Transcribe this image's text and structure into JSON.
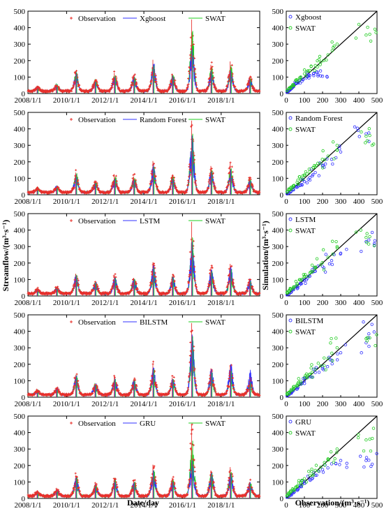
{
  "figure": {
    "ylabel_left": "Streamflow/(m³·s⁻¹)",
    "xlabel_left": "Date/day",
    "ylabel_right": "Simulation/(m³·s⁻¹)",
    "xlabel_right": "Observation/(m³·s⁻¹)"
  },
  "colors": {
    "observation": "#e8302b",
    "model": "#3030ff",
    "swat": "#22cc22",
    "identity_line": "#000000"
  },
  "chart_data": [
    {
      "type": "line",
      "panel": "timeseries",
      "legend": [
        "Observation",
        "Xgboost",
        "SWAT"
      ],
      "x_ticks": [
        "2008/1/1",
        "2010/1/1",
        "2012/1/1",
        "2014/1/1",
        "2016/1/1",
        "2018/1/1"
      ],
      "xlim": [
        "2008/1/1",
        "2019/12/31"
      ],
      "ylim": [
        0,
        500
      ],
      "y_ticks": [
        0,
        100,
        200,
        300,
        400,
        500
      ],
      "x": [
        "2008/7/1",
        "2009/7/1",
        "2010/7/1",
        "2011/7/1",
        "2012/7/1",
        "2013/7/1",
        "2014/7/1",
        "2015/7/1",
        "2016/7/1",
        "2017/7/1",
        "2018/7/1",
        "2019/7/1"
      ],
      "series": [
        {
          "name": "Observation",
          "peaks": [
            30,
            45,
            135,
            80,
            125,
            110,
            205,
            120,
            450,
            175,
            195,
            100
          ]
        },
        {
          "name": "Xgboost",
          "peaks": [
            25,
            40,
            120,
            70,
            100,
            95,
            180,
            100,
            270,
            130,
            140,
            80
          ]
        },
        {
          "name": "SWAT",
          "peaks": [
            28,
            42,
            125,
            72,
            110,
            100,
            170,
            110,
            380,
            150,
            160,
            90
          ]
        }
      ]
    },
    {
      "type": "scatter",
      "panel": "scatter",
      "legend": [
        "Xgboost",
        "SWAT"
      ],
      "xlim": [
        0,
        500
      ],
      "ylim": [
        0,
        500
      ],
      "ticks": [
        0,
        100,
        200,
        300,
        400,
        500
      ],
      "series": [
        {
          "name": "Xgboost",
          "x": [
            5,
            12,
            20,
            30,
            40,
            55,
            70,
            90,
            110,
            130,
            150,
            175,
            200
          ],
          "y": [
            8,
            15,
            22,
            35,
            45,
            60,
            75,
            85,
            95,
            110,
            120,
            115,
            105
          ]
        },
        {
          "name": "SWAT",
          "x": [
            5,
            15,
            25,
            40,
            60,
            80,
            100,
            130,
            160,
            190,
            230,
            280,
            440,
            460
          ],
          "y": [
            20,
            30,
            40,
            55,
            75,
            95,
            120,
            140,
            170,
            190,
            235,
            300,
            355,
            360
          ]
        }
      ]
    },
    {
      "type": "line",
      "panel": "timeseries",
      "legend": [
        "Observation",
        "Random Forest",
        "SWAT"
      ],
      "x_ticks": [
        "2008/1/1",
        "2010/1/1",
        "2012/1/1",
        "2014/1/1",
        "2016/1/1",
        "2018/1/1"
      ],
      "xlim": [
        "2008/1/1",
        "2019/12/31"
      ],
      "ylim": [
        0,
        500
      ],
      "y_ticks": [
        0,
        100,
        200,
        300,
        400,
        500
      ],
      "x": [
        "2008/7/1",
        "2009/7/1",
        "2010/7/1",
        "2011/7/1",
        "2012/7/1",
        "2013/7/1",
        "2014/7/1",
        "2015/7/1",
        "2016/7/1",
        "2017/7/1",
        "2018/7/1",
        "2019/7/1"
      ],
      "series": [
        {
          "name": "Observation",
          "peaks": [
            30,
            45,
            135,
            80,
            125,
            110,
            205,
            120,
            450,
            175,
            195,
            100
          ]
        },
        {
          "name": "Random Forest",
          "peaks": [
            25,
            38,
            110,
            65,
            95,
            90,
            170,
            95,
            360,
            140,
            150,
            85
          ]
        },
        {
          "name": "SWAT",
          "peaks": [
            28,
            42,
            125,
            72,
            110,
            100,
            170,
            110,
            370,
            150,
            160,
            90
          ]
        }
      ]
    },
    {
      "type": "scatter",
      "panel": "scatter",
      "legend": [
        "Random Forest",
        "SWAT"
      ],
      "xlim": [
        0,
        500
      ],
      "ylim": [
        0,
        500
      ],
      "ticks": [
        0,
        100,
        200,
        300,
        400,
        500
      ],
      "series": [
        {
          "name": "Random Forest",
          "x": [
            5,
            15,
            25,
            40,
            60,
            80,
            100,
            130,
            160,
            200,
            250,
            300,
            440,
            455
          ],
          "y": [
            6,
            12,
            20,
            30,
            45,
            60,
            80,
            105,
            135,
            175,
            215,
            260,
            370,
            375
          ]
        },
        {
          "name": "SWAT",
          "x": [
            5,
            15,
            25,
            40,
            60,
            80,
            100,
            130,
            160,
            190,
            230,
            280,
            440,
            460
          ],
          "y": [
            20,
            30,
            40,
            55,
            75,
            95,
            120,
            140,
            170,
            190,
            235,
            300,
            355,
            360
          ]
        }
      ]
    },
    {
      "type": "line",
      "panel": "timeseries",
      "legend": [
        "Observation",
        "LSTM",
        "SWAT"
      ],
      "x_ticks": [
        "2008/1/1",
        "2010/1/1",
        "2012/1/1",
        "2014/1/1",
        "2016/1/1",
        "2018/1/1"
      ],
      "xlim": [
        "2008/1/1",
        "2019/12/31"
      ],
      "ylim": [
        0,
        500
      ],
      "y_ticks": [
        0,
        100,
        200,
        300,
        400,
        500
      ],
      "x": [
        "2008/7/1",
        "2009/7/1",
        "2010/7/1",
        "2011/7/1",
        "2012/7/1",
        "2013/7/1",
        "2014/7/1",
        "2015/7/1",
        "2016/7/1",
        "2017/7/1",
        "2018/7/1",
        "2019/7/1"
      ],
      "series": [
        {
          "name": "Observation",
          "peaks": [
            30,
            45,
            135,
            80,
            125,
            110,
            205,
            120,
            450,
            175,
            195,
            100
          ]
        },
        {
          "name": "LSTM",
          "peaks": [
            26,
            42,
            125,
            75,
            110,
            100,
            185,
            110,
            330,
            160,
            175,
            90
          ]
        },
        {
          "name": "SWAT",
          "peaks": [
            28,
            42,
            125,
            72,
            110,
            100,
            170,
            110,
            350,
            150,
            160,
            90
          ]
        }
      ]
    },
    {
      "type": "scatter",
      "panel": "scatter",
      "legend": [
        "LSTM",
        "SWAT"
      ],
      "xlim": [
        0,
        500
      ],
      "ylim": [
        0,
        500
      ],
      "ticks": [
        0,
        100,
        200,
        300,
        400,
        500
      ],
      "series": [
        {
          "name": "LSTM",
          "x": [
            5,
            15,
            25,
            40,
            60,
            80,
            100,
            130,
            160,
            200,
            250,
            300,
            440,
            455
          ],
          "y": [
            7,
            14,
            24,
            38,
            55,
            75,
            95,
            120,
            150,
            180,
            215,
            260,
            330,
            340
          ]
        },
        {
          "name": "SWAT",
          "x": [
            5,
            15,
            25,
            40,
            60,
            80,
            100,
            130,
            160,
            190,
            230,
            280,
            440,
            460
          ],
          "y": [
            20,
            30,
            40,
            55,
            75,
            95,
            120,
            140,
            170,
            190,
            235,
            300,
            355,
            360
          ]
        }
      ]
    },
    {
      "type": "line",
      "panel": "timeseries",
      "legend": [
        "Observation",
        "BILSTM",
        "SWAT"
      ],
      "x_ticks": [
        "2008/1/1",
        "2010/1/1",
        "2012/1/1",
        "2014/1/1",
        "2016/1/1",
        "2018/1/1"
      ],
      "xlim": [
        "2008/1/1",
        "2019/12/31"
      ],
      "ylim": [
        0,
        500
      ],
      "y_ticks": [
        0,
        100,
        200,
        300,
        400,
        500
      ],
      "x": [
        "2008/7/1",
        "2009/7/1",
        "2010/7/1",
        "2011/7/1",
        "2012/7/1",
        "2013/7/1",
        "2014/7/1",
        "2015/7/1",
        "2016/7/1",
        "2017/7/1",
        "2018/7/1",
        "2019/7/1"
      ],
      "series": [
        {
          "name": "Observation",
          "peaks": [
            30,
            45,
            135,
            80,
            125,
            110,
            205,
            120,
            450,
            175,
            195,
            100
          ]
        },
        {
          "name": "BILSTM",
          "peaks": [
            26,
            42,
            120,
            75,
            105,
            100,
            180,
            110,
            380,
            170,
            200,
            150
          ]
        },
        {
          "name": "SWAT",
          "peaks": [
            28,
            42,
            125,
            72,
            110,
            100,
            170,
            110,
            370,
            150,
            160,
            90
          ]
        }
      ]
    },
    {
      "type": "scatter",
      "panel": "scatter",
      "legend": [
        "BILSTM",
        "SWAT"
      ],
      "xlim": [
        0,
        500
      ],
      "ylim": [
        0,
        500
      ],
      "ticks": [
        0,
        100,
        200,
        300,
        400,
        500
      ],
      "series": [
        {
          "name": "BILSTM",
          "x": [
            5,
            15,
            25,
            40,
            60,
            80,
            100,
            130,
            160,
            200,
            250,
            300,
            440,
            455
          ],
          "y": [
            8,
            16,
            25,
            40,
            58,
            78,
            100,
            125,
            150,
            185,
            225,
            270,
            330,
            385
          ]
        },
        {
          "name": "SWAT",
          "x": [
            5,
            15,
            25,
            40,
            60,
            80,
            100,
            130,
            160,
            190,
            230,
            280,
            440,
            460
          ],
          "y": [
            20,
            30,
            40,
            55,
            75,
            95,
            120,
            140,
            170,
            190,
            235,
            300,
            355,
            360
          ]
        }
      ]
    },
    {
      "type": "line",
      "panel": "timeseries",
      "legend": [
        "Observation",
        "GRU",
        "SWAT"
      ],
      "x_ticks": [
        "2008/1/1",
        "2010/1/1",
        "2012/1/1",
        "2014/1/1",
        "2016/1/1",
        "2018/1/1"
      ],
      "xlim": [
        "2008/1/1",
        "2019/12/31"
      ],
      "ylim": [
        0,
        500
      ],
      "y_ticks": [
        0,
        100,
        200,
        300,
        400,
        500
      ],
      "x": [
        "2008/7/1",
        "2009/7/1",
        "2010/7/1",
        "2011/7/1",
        "2012/7/1",
        "2013/7/1",
        "2014/7/1",
        "2015/7/1",
        "2016/7/1",
        "2017/7/1",
        "2018/7/1",
        "2019/7/1"
      ],
      "series": [
        {
          "name": "Observation",
          "peaks": [
            30,
            45,
            140,
            85,
            120,
            110,
            205,
            125,
            450,
            170,
            190,
            100
          ]
        },
        {
          "name": "GRU",
          "peaks": [
            25,
            40,
            125,
            72,
            100,
            95,
            170,
            100,
            230,
            150,
            150,
            85
          ]
        },
        {
          "name": "SWAT",
          "peaks": [
            28,
            42,
            125,
            72,
            110,
            100,
            170,
            110,
            350,
            150,
            160,
            90
          ]
        }
      ]
    },
    {
      "type": "scatter",
      "panel": "scatter",
      "legend": [
        "GRU",
        "SWAT"
      ],
      "xlim": [
        0,
        500
      ],
      "ylim": [
        0,
        500
      ],
      "ticks": [
        0,
        100,
        200,
        300,
        400,
        500
      ],
      "series": [
        {
          "name": "GRU",
          "x": [
            5,
            15,
            25,
            40,
            60,
            80,
            100,
            130,
            160,
            200,
            250,
            300,
            440,
            455
          ],
          "y": [
            7,
            15,
            24,
            38,
            55,
            72,
            92,
            115,
            140,
            175,
            210,
            230,
            230,
            232
          ]
        },
        {
          "name": "SWAT",
          "x": [
            5,
            15,
            25,
            40,
            60,
            80,
            100,
            130,
            160,
            190,
            230,
            280,
            440,
            460
          ],
          "y": [
            20,
            30,
            40,
            55,
            75,
            95,
            120,
            140,
            170,
            190,
            235,
            300,
            355,
            360
          ]
        }
      ]
    }
  ]
}
